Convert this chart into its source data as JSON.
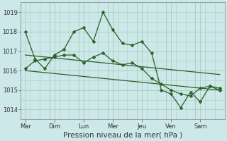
{
  "xlabel": "Pression niveau de la mer( hPa )",
  "bg_color": "#cce8e8",
  "grid_color": "#aaccbb",
  "line_color": "#2a5e2a",
  "ylim": [
    1013.5,
    1019.5
  ],
  "xlim": [
    0,
    21
  ],
  "day_labels": [
    "Mar",
    "Dim",
    "Lun",
    "Mer",
    "Jeu",
    "Ven",
    "Sam"
  ],
  "day_positions": [
    0.5,
    3.5,
    6.5,
    9.5,
    12.5,
    15.5,
    18.5
  ],
  "series1_x": [
    0.5,
    1.5,
    2.5,
    3.5,
    4.5,
    5.5,
    6.5,
    7.5,
    8.5,
    9.5,
    10.5,
    11.5,
    12.5,
    13.5,
    14.5,
    15.5,
    16.5,
    17.5,
    18.5,
    19.5,
    20.5
  ],
  "series1_y": [
    1018.0,
    1016.6,
    1016.1,
    1016.8,
    1017.1,
    1018.0,
    1018.2,
    1017.5,
    1019.0,
    1018.1,
    1017.4,
    1017.3,
    1017.5,
    1016.9,
    1015.0,
    1014.8,
    1014.1,
    1014.9,
    1014.4,
    1015.2,
    1015.1
  ],
  "series2_x": [
    0.5,
    1.5,
    2.5,
    3.5,
    4.5,
    5.5,
    6.5,
    7.5,
    8.5,
    9.5,
    10.5,
    11.5,
    12.5,
    13.5,
    14.5,
    15.5,
    16.5,
    17.5,
    18.5,
    19.5,
    20.5
  ],
  "series2_y": [
    1016.1,
    1016.5,
    1016.6,
    1016.7,
    1016.8,
    1016.8,
    1016.4,
    1016.7,
    1016.9,
    1016.5,
    1016.3,
    1016.4,
    1016.1,
    1015.6,
    1015.3,
    1015.0,
    1014.8,
    1014.7,
    1015.1,
    1015.2,
    1015.0
  ],
  "trend1_x": [
    0.5,
    20.5
  ],
  "trend1_y": [
    1016.8,
    1015.8
  ],
  "trend2_x": [
    0.5,
    20.5
  ],
  "trend2_y": [
    1016.0,
    1015.0
  ],
  "yticks": [
    1014,
    1015,
    1016,
    1017,
    1018,
    1019
  ],
  "tick_fontsize": 6.0,
  "xlabel_fontsize": 7.5,
  "figsize": [
    3.2,
    2.0
  ],
  "dpi": 100
}
